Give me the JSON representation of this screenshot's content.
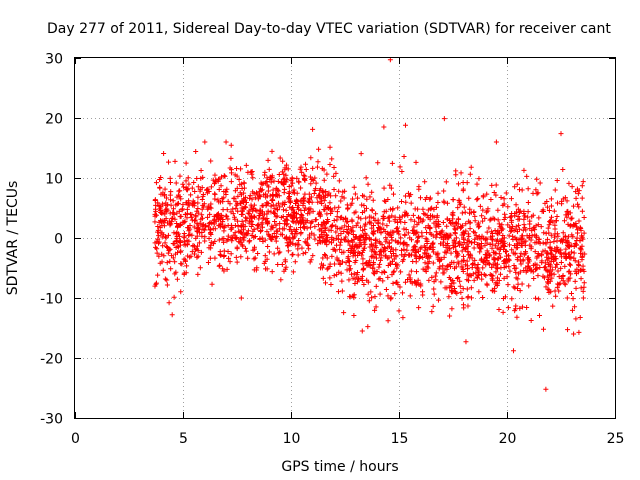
{
  "chart_data": {
    "type": "scatter",
    "title": "Day 277 of 2011, Sidereal Day-to-day VTEC variation (SDTVAR) for receiver cant",
    "xlabel": "GPS time / hours",
    "ylabel": "SDTVAR / TECUs",
    "xlim": [
      0,
      25
    ],
    "ylim": [
      -30,
      30
    ],
    "xticks": [
      0,
      5,
      10,
      15,
      20,
      25
    ],
    "yticks": [
      -30,
      -20,
      -10,
      0,
      10,
      20,
      30
    ],
    "xtick_labels": [
      "0",
      "5",
      "10",
      "15",
      "20",
      "25"
    ],
    "ytick_labels": [
      "-30",
      "-20",
      "-10",
      "0",
      "10",
      "20",
      "30"
    ],
    "grid": true,
    "marker": "+",
    "series": [
      {
        "name": "SDTVAR",
        "color": "#ff0000",
        "x_range": [
          3.7,
          23.6
        ],
        "outliers": [
          {
            "x": 14.6,
            "y": 29.7
          },
          {
            "x": 17.1,
            "y": 19.9
          },
          {
            "x": 22.5,
            "y": 17.4
          },
          {
            "x": 15.3,
            "y": 18.8
          },
          {
            "x": 14.3,
            "y": 18.5
          },
          {
            "x": 11.0,
            "y": 18.1
          },
          {
            "x": 21.8,
            "y": -25.2
          },
          {
            "x": 20.3,
            "y": -18.8
          },
          {
            "x": 18.1,
            "y": -17.3
          },
          {
            "x": 4.5,
            "y": -12.8
          },
          {
            "x": 7.7,
            "y": -10.0
          },
          {
            "x": 13.3,
            "y": -15.5
          }
        ]
      }
    ]
  }
}
